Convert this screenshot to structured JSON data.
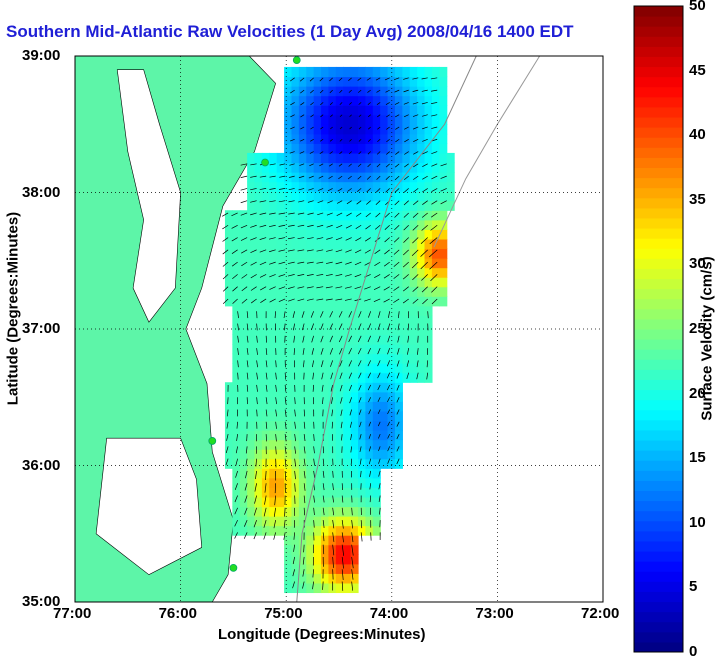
{
  "title": "Southern Mid-Atlantic Raw Velocities (1 Day Avg) 2008/04/16 1400 EDT",
  "x_axis": {
    "label": "Longitude (Degrees:Minutes)",
    "ticks": [
      "77:00",
      "76:00",
      "75:00",
      "74:00",
      "73:00",
      "72:00"
    ]
  },
  "y_axis": {
    "label": "Latitude (Degrees:Minutes)",
    "ticks": [
      "39:00",
      "38:00",
      "37:00",
      "36:00",
      "35:00"
    ]
  },
  "colorbar": {
    "label": "Surface Velocity (cm/s)",
    "ticks": [
      "50",
      "45",
      "40",
      "35",
      "30",
      "25",
      "20",
      "15",
      "10",
      "5",
      "0"
    ],
    "min": 0,
    "max": 50
  },
  "chart_data": {
    "type": "heatmap",
    "title": "Southern Mid-Atlantic Raw Velocities (1 Day Avg) 2008/04/16 1400 EDT",
    "xlabel": "Longitude (Degrees:Minutes)",
    "ylabel": "Latitude (Degrees:Minutes)",
    "xlim": [
      -77,
      -72
    ],
    "ylim": [
      35,
      39
    ],
    "grid": true,
    "colorbar_range": [
      0,
      50
    ],
    "regions": [
      {
        "area": "north offshore (38.3N-38.9N, 74.9W-73.6W)",
        "approx_speed_cm_s": 5
      },
      {
        "area": "central band (37.2N-37.9N, 75.5W-73.7W)",
        "approx_speed_cm_s": 25
      },
      {
        "area": "east edge near 37.5N 73.5W",
        "approx_speed_cm_s": 40
      },
      {
        "area": "south offshore near 35.2N 74.6W",
        "approx_speed_cm_s": 50
      },
      {
        "area": "coastal south near 35.8N 75.1W",
        "approx_speed_cm_s": 35
      },
      {
        "area": "mid offshore near 36.3N 74.2W",
        "approx_speed_cm_s": 15
      }
    ],
    "stations": [
      {
        "lon": -74.9,
        "lat": 38.97
      },
      {
        "lon": -75.2,
        "lat": 38.22
      },
      {
        "lon": -75.7,
        "lat": 36.18
      },
      {
        "lon": -75.5,
        "lat": 35.25
      }
    ]
  },
  "colors": {
    "land": "#5df5a8",
    "title": "#1f1fd6",
    "station": "#22dd22"
  }
}
